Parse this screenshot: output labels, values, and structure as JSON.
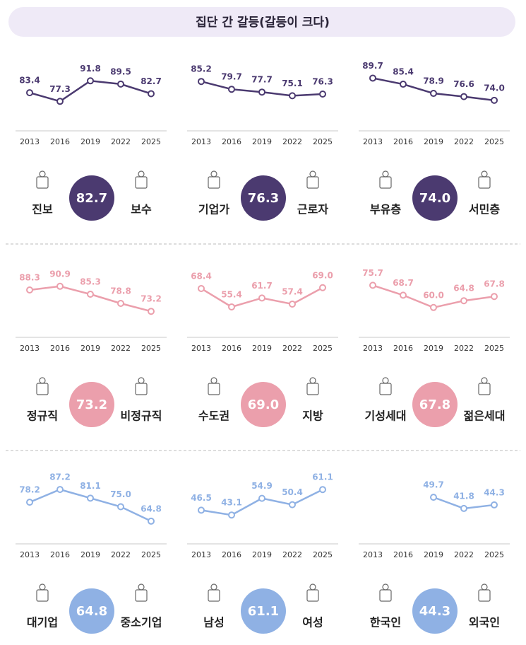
{
  "title": "집단 간 갈등(갈등이 크다)",
  "chart_data": [
    {
      "type": "line",
      "categories": [
        "2013",
        "2016",
        "2019",
        "2022",
        "2025"
      ],
      "left_label": "진보",
      "right_label": "보수",
      "series": [
        {
          "color": "#4b3a70",
          "values": [
            83.4,
            77.3,
            91.8,
            89.5,
            82.7
          ],
          "value_labels": [
            "83.4",
            "77.3",
            "91.8",
            "89.5",
            "82.7"
          ]
        }
      ]
    },
    {
      "type": "line",
      "categories": [
        "2013",
        "2016",
        "2019",
        "2022",
        "2025"
      ],
      "left_label": "기업가",
      "right_label": "근로자",
      "series": [
        {
          "color": "#4b3a70",
          "values": [
            85.2,
            79.7,
            77.7,
            75.1,
            76.3
          ],
          "value_labels": [
            "85.2",
            "79.7",
            "77.7",
            "75.1",
            "76.3"
          ]
        }
      ]
    },
    {
      "type": "line",
      "categories": [
        "2013",
        "2016",
        "2019",
        "2022",
        "2025"
      ],
      "left_label": "부유층",
      "right_label": "서민층",
      "series": [
        {
          "color": "#4b3a70",
          "values": [
            89.7,
            85.4,
            78.9,
            76.6,
            74.0
          ],
          "value_labels": [
            "89.7",
            "85.4",
            "78.9",
            "76.6",
            "74.0"
          ]
        }
      ]
    },
    {
      "type": "line",
      "categories": [
        "2013",
        "2016",
        "2019",
        "2022",
        "2025"
      ],
      "left_label": "정규직",
      "right_label": "비정규직",
      "series": [
        {
          "color": "#eb9fac",
          "values": [
            88.3,
            90.9,
            85.3,
            78.8,
            73.2
          ],
          "value_labels": [
            "88.3",
            "90.9",
            "85.3",
            "78.8",
            "73.2"
          ]
        }
      ]
    },
    {
      "type": "line",
      "categories": [
        "2013",
        "2016",
        "2019",
        "2022",
        "2025"
      ],
      "left_label": "수도권",
      "right_label": "지방",
      "series": [
        {
          "color": "#eb9fac",
          "values": [
            68.4,
            55.4,
            61.7,
            57.4,
            69.0
          ],
          "value_labels": [
            "68.4",
            "55.4",
            "61.7",
            "57.4",
            "69.0"
          ]
        }
      ]
    },
    {
      "type": "line",
      "categories": [
        "2013",
        "2016",
        "2019",
        "2022",
        "2025"
      ],
      "left_label": "기성세대",
      "right_label": "젊은세대",
      "series": [
        {
          "color": "#eb9fac",
          "values": [
            75.7,
            68.7,
            60.0,
            64.8,
            67.8
          ],
          "value_labels": [
            "75.7",
            "68.7",
            "60.0",
            "64.8",
            "67.8"
          ]
        }
      ]
    },
    {
      "type": "line",
      "categories": [
        "2013",
        "2016",
        "2019",
        "2022",
        "2025"
      ],
      "left_label": "대기업",
      "right_label": "중소기업",
      "series": [
        {
          "color": "#8fb1e4",
          "values": [
            78.2,
            87.2,
            81.1,
            75.0,
            64.8
          ],
          "value_labels": [
            "78.2",
            "87.2",
            "81.1",
            "75.0",
            "64.8"
          ]
        }
      ]
    },
    {
      "type": "line",
      "categories": [
        "2013",
        "2016",
        "2019",
        "2022",
        "2025"
      ],
      "left_label": "남성",
      "right_label": "여성",
      "series": [
        {
          "color": "#8fb1e4",
          "values": [
            46.5,
            43.1,
            54.9,
            50.4,
            61.1
          ],
          "value_labels": [
            "46.5",
            "43.1",
            "54.9",
            "50.4",
            "61.1"
          ]
        }
      ]
    },
    {
      "type": "line",
      "categories": [
        "2013",
        "2016",
        "2019",
        "2022",
        "2025"
      ],
      "left_label": "한국인",
      "right_label": "외국인",
      "series": [
        {
          "color": "#8fb1e4",
          "values": [
            null,
            null,
            49.7,
            41.8,
            44.3
          ],
          "value_labels": [
            null,
            null,
            "49.7",
            "41.8",
            "44.3"
          ]
        }
      ]
    }
  ]
}
